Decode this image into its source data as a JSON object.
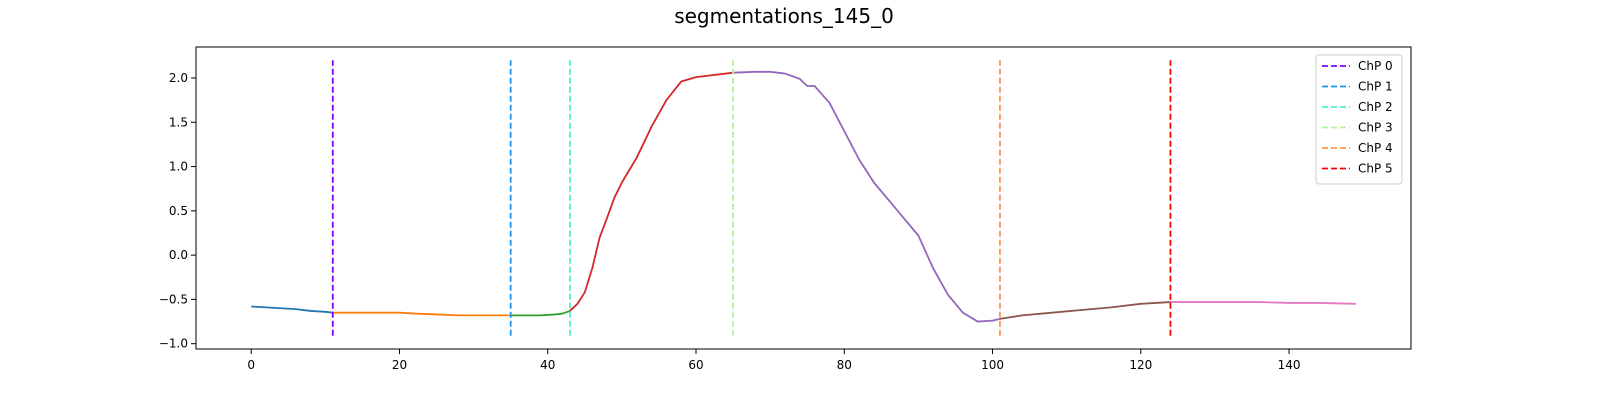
{
  "chart_data": {
    "type": "line",
    "title": "segmentations_145_0",
    "xlabel": "",
    "ylabel": "",
    "xlim": [
      -7.45,
      156.45
    ],
    "ylim": [
      -1.06,
      2.35
    ],
    "xticks": [
      0,
      20,
      40,
      60,
      80,
      100,
      120,
      140
    ],
    "yticks": [
      -1.0,
      -0.5,
      0.0,
      0.5,
      1.0,
      1.5,
      2.0
    ],
    "grid": false,
    "legend_position": "top-right",
    "segments": [
      {
        "color": "#1f77b4",
        "x": [
          0,
          2,
          4,
          6,
          8,
          10,
          11
        ],
        "y": [
          -0.58,
          -0.59,
          -0.6,
          -0.61,
          -0.63,
          -0.64,
          -0.65
        ]
      },
      {
        "color": "#ff7f0e",
        "x": [
          11,
          13,
          16,
          20,
          22,
          25,
          28,
          31,
          33,
          35
        ],
        "y": [
          -0.65,
          -0.65,
          -0.65,
          -0.65,
          -0.66,
          -0.67,
          -0.68,
          -0.68,
          -0.68,
          -0.68
        ]
      },
      {
        "color": "#2ca02c",
        "x": [
          35,
          37,
          39,
          41,
          42,
          43
        ],
        "y": [
          -0.68,
          -0.68,
          -0.68,
          -0.67,
          -0.66,
          -0.63
        ]
      },
      {
        "color": "#d62728",
        "x": [
          43,
          44,
          45,
          46,
          47,
          48,
          49,
          50,
          52,
          54,
          56,
          58,
          60,
          62,
          65
        ],
        "y": [
          -0.63,
          -0.55,
          -0.42,
          -0.15,
          0.2,
          0.42,
          0.65,
          0.82,
          1.1,
          1.45,
          1.75,
          1.96,
          2.01,
          2.03,
          2.06
        ]
      },
      {
        "color": "#9467bd",
        "x": [
          65,
          68,
          70,
          72,
          74,
          75,
          76,
          78,
          80,
          82,
          84,
          86,
          88,
          90,
          92,
          94,
          96,
          98,
          100,
          101
        ],
        "y": [
          2.06,
          2.07,
          2.07,
          2.05,
          1.99,
          1.91,
          1.91,
          1.72,
          1.4,
          1.08,
          0.82,
          0.62,
          0.42,
          0.22,
          -0.15,
          -0.45,
          -0.65,
          -0.75,
          -0.74,
          -0.72
        ]
      },
      {
        "color": "#8c564b",
        "x": [
          101,
          104,
          108,
          112,
          116,
          120,
          122,
          124
        ],
        "y": [
          -0.72,
          -0.68,
          -0.65,
          -0.62,
          -0.59,
          -0.55,
          -0.54,
          -0.53
        ]
      },
      {
        "color": "#e377c2",
        "x": [
          124,
          128,
          132,
          136,
          140,
          144,
          149
        ],
        "y": [
          -0.53,
          -0.53,
          -0.53,
          -0.53,
          -0.54,
          -0.54,
          -0.55
        ]
      }
    ],
    "changepoints": [
      {
        "name": "ChP 0",
        "x": 11,
        "color": "#8000ff"
      },
      {
        "name": "ChP 1",
        "x": 35,
        "color": "#1996f3"
      },
      {
        "name": "ChP 2",
        "x": 43,
        "color": "#4cf2ce"
      },
      {
        "name": "ChP 3",
        "x": 65,
        "color": "#b2f396"
      },
      {
        "name": "ChP 4",
        "x": 101,
        "color": "#ff964f"
      },
      {
        "name": "ChP 5",
        "x": 124,
        "color": "#ff0000"
      }
    ],
    "changepoint_line_range": [
      -0.91,
      2.2
    ]
  }
}
